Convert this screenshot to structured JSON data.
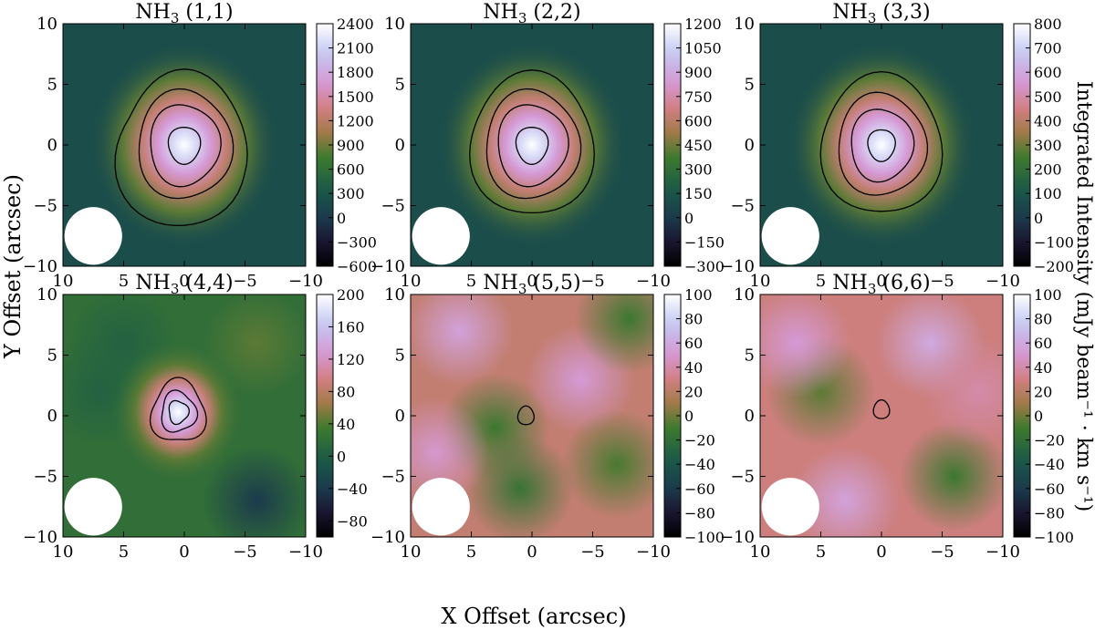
{
  "figure": {
    "xlabel": "X Offset (arcsec)",
    "ylabel": "Y Offset (arcsec)",
    "cbar_label": "Integrated Intensity (mJy beam⁻¹ · km s⁻¹)"
  },
  "chart_data": [
    {
      "type": "heatmap",
      "title_base": "NH",
      "title_sub": "3",
      "title_rest": " (1,1)",
      "x_ticks": [
        10,
        5,
        0,
        -5,
        -10
      ],
      "y_ticks": [
        10,
        5,
        0,
        -5,
        -10
      ],
      "xlim": [
        10,
        -10
      ],
      "ylim": [
        -10,
        10
      ],
      "colorbar": {
        "min": -600,
        "max": 2400,
        "ticks": [
          2400,
          2100,
          1800,
          1500,
          1200,
          900,
          600,
          300,
          0,
          -300,
          -600
        ]
      },
      "peak": 2400,
      "contour_levels": [
        150,
        500,
        1000,
        2000
      ],
      "source_center": [
        0.0,
        0.0
      ],
      "beam_center": [
        7.5,
        -7.5
      ],
      "beam_radius": 2.2
    },
    {
      "type": "heatmap",
      "title_base": "NH",
      "title_sub": "3",
      "title_rest": " (2,2)",
      "x_ticks": [
        10,
        5,
        0,
        -5,
        -10
      ],
      "y_ticks": [
        10,
        5,
        0,
        -5,
        -10
      ],
      "xlim": [
        10,
        -10
      ],
      "ylim": [
        -10,
        10
      ],
      "colorbar": {
        "min": -300,
        "max": 1200,
        "ticks": [
          1200,
          1050,
          900,
          750,
          600,
          450,
          300,
          150,
          0,
          -150,
          -300
        ]
      },
      "peak": 1200,
      "contour_levels": [
        80,
        250,
        500,
        1000
      ],
      "source_center": [
        0.0,
        0.0
      ],
      "beam_center": [
        7.5,
        -7.5
      ],
      "beam_radius": 2.2
    },
    {
      "type": "heatmap",
      "title_base": "NH",
      "title_sub": "3",
      "title_rest": " (3,3)",
      "x_ticks": [
        10,
        5,
        0,
        -5,
        -10
      ],
      "y_ticks": [
        10,
        5,
        0,
        -5,
        -10
      ],
      "xlim": [
        10,
        -10
      ],
      "ylim": [
        -10,
        10
      ],
      "colorbar": {
        "min": -200,
        "max": 800,
        "ticks": [
          800,
          700,
          600,
          500,
          400,
          300,
          200,
          100,
          0,
          -100,
          -200
        ]
      },
      "peak": 800,
      "contour_levels": [
        60,
        200,
        400,
        700
      ],
      "source_center": [
        0.0,
        0.0
      ],
      "beam_center": [
        7.5,
        -7.5
      ],
      "beam_radius": 2.2
    },
    {
      "type": "heatmap",
      "title_base": "NH",
      "title_sub": "3",
      "title_rest": " (4,4)",
      "x_ticks": [
        10,
        5,
        0,
        -5,
        -10
      ],
      "y_ticks": [
        10,
        5,
        0,
        -5,
        -10
      ],
      "xlim": [
        10,
        -10
      ],
      "ylim": [
        -10,
        10
      ],
      "colorbar": {
        "min": -100,
        "max": 200,
        "ticks": [
          200,
          160,
          120,
          80,
          40,
          0,
          -40,
          -80
        ]
      },
      "peak": 200,
      "contour_levels": [
        60,
        120,
        170
      ],
      "source_center": [
        0.5,
        0.3
      ],
      "beam_center": [
        7.5,
        -7.5
      ],
      "beam_radius": 2.2
    },
    {
      "type": "heatmap",
      "title_base": "NH",
      "title_sub": "3",
      "title_rest": " (5,5)",
      "x_ticks": [
        10,
        5,
        0,
        -5,
        -10
      ],
      "y_ticks": [
        10,
        5,
        0,
        -5,
        -10
      ],
      "xlim": [
        10,
        -10
      ],
      "ylim": [
        -10,
        10
      ],
      "colorbar": {
        "min": -100,
        "max": 100,
        "ticks": [
          100,
          80,
          60,
          40,
          20,
          0,
          -20,
          -40,
          -60,
          -80,
          -100
        ]
      },
      "peak": 100,
      "contour_levels": [
        60
      ],
      "source_center": [
        0.5,
        0.0
      ],
      "beam_center": [
        7.5,
        -7.5
      ],
      "beam_radius": 2.2
    },
    {
      "type": "heatmap",
      "title_base": "NH",
      "title_sub": "3",
      "title_rest": " (6,6)",
      "x_ticks": [
        10,
        5,
        0,
        -5,
        -10
      ],
      "y_ticks": [
        10,
        5,
        0,
        -5,
        -10
      ],
      "xlim": [
        10,
        -10
      ],
      "ylim": [
        -10,
        10
      ],
      "colorbar": {
        "min": -100,
        "max": 100,
        "ticks": [
          100,
          80,
          60,
          40,
          20,
          0,
          -20,
          -40,
          -60,
          -80,
          -100
        ]
      },
      "peak": 100,
      "contour_levels": [
        60
      ],
      "source_center": [
        0.0,
        0.5
      ],
      "beam_center": [
        7.5,
        -7.5
      ],
      "beam_radius": 2.2
    }
  ]
}
